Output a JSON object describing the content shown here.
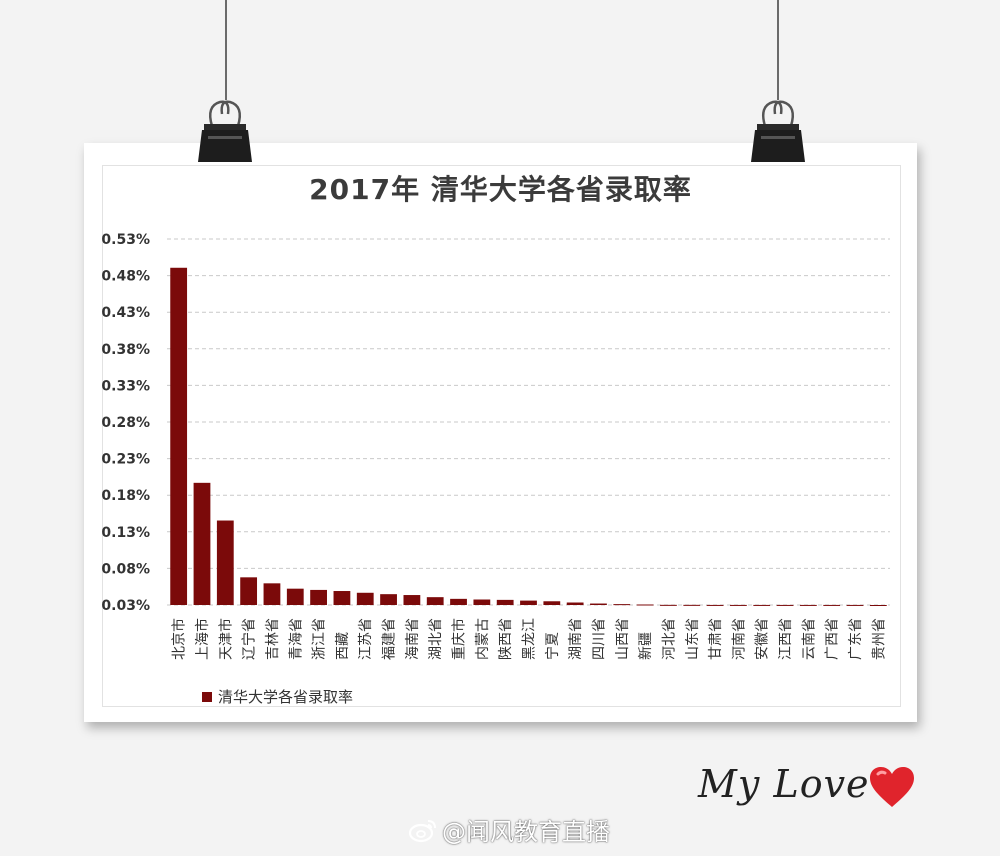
{
  "chart_data": {
    "type": "bar",
    "title": "2017年 清华大学各省录取率",
    "categories": [
      "北京市",
      "上海市",
      "天津市",
      "辽宁省",
      "吉林省",
      "青海省",
      "浙江省",
      "西藏",
      "江苏省",
      "福建省",
      "海南省",
      "湖北省",
      "重庆市",
      "内蒙古",
      "陕西省",
      "黑龙江",
      "宁夏",
      "湖南省",
      "四川省",
      "山西省",
      "新疆",
      "河北省",
      "山东省",
      "甘肃省",
      "河南省",
      "安徽省",
      "江西省",
      "云南省",
      "广西省",
      "广东省",
      "贵州省"
    ],
    "series": [
      {
        "name": "清华大学各省录取率",
        "values": [
          0.4907,
          0.1969,
          0.1454,
          0.0678,
          0.0596,
          0.0523,
          0.0506,
          0.0491,
          0.0467,
          0.0448,
          0.0436,
          0.0407,
          0.0384,
          0.0375,
          0.037,
          0.036,
          0.0351,
          0.0334,
          0.032,
          0.0312,
          0.0307,
          0.0302,
          0.0302,
          0.0301,
          0.0301,
          0.0301,
          0.0301,
          0.0301,
          0.0301,
          0.0301,
          0.03
        ]
      }
    ],
    "yticks": [
      "0.03%",
      "0.08%",
      "0.13%",
      "0.18%",
      "0.23%",
      "0.28%",
      "0.33%",
      "0.38%",
      "0.43%",
      "0.48%",
      "0.53%"
    ],
    "ylim": [
      0.03,
      0.53
    ],
    "grid": true,
    "legend_position": "bottom-left",
    "bar_color": "#7b0a0a"
  },
  "decor": {
    "signature": "My Love",
    "watermark": "@闻风教育直播",
    "heart_icon": "heart-icon",
    "weibo_icon": "weibo-icon"
  }
}
